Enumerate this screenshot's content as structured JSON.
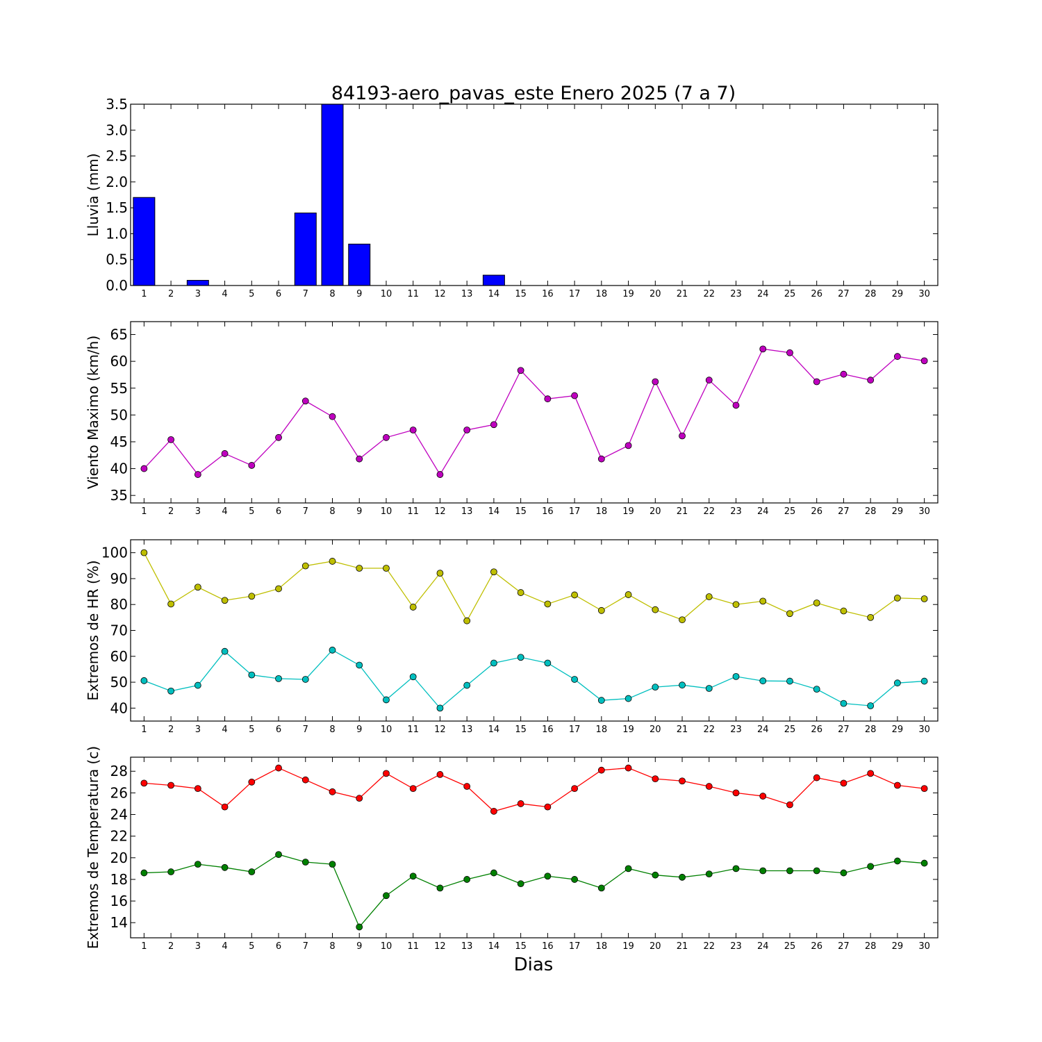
{
  "figure": {
    "title": "84193-aero_pavas_este Enero 2025  (7 a 7)",
    "xlabel": "Dias"
  },
  "chart_data": [
    {
      "type": "bar",
      "ylabel": "Lluvia (mm)",
      "x": [
        1,
        2,
        3,
        4,
        5,
        6,
        7,
        8,
        9,
        10,
        11,
        12,
        13,
        14,
        15,
        16,
        17,
        18,
        19,
        20,
        21,
        22,
        23,
        24,
        25,
        26,
        27,
        28,
        29,
        30
      ],
      "xlim": [
        0.5,
        30.5
      ],
      "ylim": [
        0,
        3.5
      ],
      "yticks": [
        0.0,
        0.5,
        1.0,
        1.5,
        2.0,
        2.5,
        3.0,
        3.5
      ],
      "ytick_labels": [
        "0.0",
        "0.5",
        "1.0",
        "1.5",
        "2.0",
        "2.5",
        "3.0",
        "3.5"
      ],
      "grid": false,
      "series": [
        {
          "color": "#0000ff",
          "values": [
            1.7,
            0,
            0.1,
            0,
            0,
            0,
            1.4,
            3.6,
            0.8,
            0,
            0,
            0,
            0,
            0.2,
            0,
            0,
            0,
            0,
            0,
            0,
            0,
            0,
            0,
            0,
            0,
            0,
            0,
            0,
            0,
            0
          ]
        }
      ]
    },
    {
      "type": "line",
      "ylabel": "Viento Maximo (km/h)",
      "x": [
        1,
        2,
        3,
        4,
        5,
        6,
        7,
        8,
        9,
        10,
        11,
        12,
        13,
        14,
        15,
        16,
        17,
        18,
        19,
        20,
        21,
        22,
        23,
        24,
        25,
        26,
        27,
        28,
        29,
        30
      ],
      "xlim": [
        0.5,
        30.5
      ],
      "ylim": [
        33.6,
        67.4
      ],
      "yticks": [
        35,
        40,
        45,
        50,
        55,
        60,
        65
      ],
      "ytick_labels": [
        "35",
        "40",
        "45",
        "50",
        "55",
        "60",
        "65"
      ],
      "grid": false,
      "series": [
        {
          "color": "#bf00bf",
          "values": [
            40.0,
            45.4,
            38.9,
            42.8,
            40.6,
            45.8,
            52.6,
            49.7,
            41.8,
            45.8,
            47.2,
            38.9,
            47.2,
            48.2,
            58.3,
            53.0,
            53.6,
            41.8,
            44.3,
            56.2,
            46.1,
            56.5,
            51.8,
            62.3,
            61.6,
            56.2,
            57.6,
            56.5,
            60.9,
            60.1
          ]
        }
      ]
    },
    {
      "type": "line",
      "ylabel": "Extremos de HR (%)",
      "x": [
        1,
        2,
        3,
        4,
        5,
        6,
        7,
        8,
        9,
        10,
        11,
        12,
        13,
        14,
        15,
        16,
        17,
        18,
        19,
        20,
        21,
        22,
        23,
        24,
        25,
        26,
        27,
        28,
        29,
        30
      ],
      "xlim": [
        0.5,
        30.5
      ],
      "ylim": [
        35,
        105
      ],
      "yticks": [
        40,
        50,
        60,
        70,
        80,
        90,
        100
      ],
      "ytick_labels": [
        "40",
        "50",
        "60",
        "70",
        "80",
        "90",
        "100"
      ],
      "grid": false,
      "series": [
        {
          "color": "#bfbf00",
          "values": [
            100,
            80.2,
            86.7,
            81.6,
            83.2,
            86.1,
            94.9,
            96.7,
            94.0,
            94.0,
            79.0,
            92.1,
            73.7,
            92.6,
            84.6,
            80.2,
            83.7,
            77.7,
            83.8,
            78.0,
            74.1,
            83.0,
            80.0,
            81.3,
            76.5,
            80.6,
            77.5,
            75.0,
            82.5,
            82.2
          ]
        },
        {
          "color": "#00bfbf",
          "values": [
            50.6,
            46.6,
            48.8,
            61.9,
            52.8,
            51.4,
            51.1,
            62.4,
            56.6,
            43.2,
            52.1,
            40.0,
            48.8,
            57.4,
            59.6,
            57.4,
            51.1,
            43.0,
            43.7,
            48.1,
            48.9,
            47.6,
            52.2,
            50.5,
            50.4,
            47.3,
            41.8,
            40.9,
            49.7,
            50.4
          ]
        }
      ]
    },
    {
      "type": "line",
      "ylabel": "Extremos de Temperatura (c)",
      "x": [
        1,
        2,
        3,
        4,
        5,
        6,
        7,
        8,
        9,
        10,
        11,
        12,
        13,
        14,
        15,
        16,
        17,
        18,
        19,
        20,
        21,
        22,
        23,
        24,
        25,
        26,
        27,
        28,
        29,
        30
      ],
      "xlim": [
        0.5,
        30.5
      ],
      "ylim": [
        12.6,
        29.3
      ],
      "yticks": [
        14,
        16,
        18,
        20,
        22,
        24,
        26,
        28
      ],
      "ytick_labels": [
        "14",
        "16",
        "18",
        "20",
        "22",
        "24",
        "26",
        "28"
      ],
      "grid": false,
      "series": [
        {
          "color": "#ff0000",
          "values": [
            26.9,
            26.7,
            26.4,
            24.7,
            27.0,
            28.3,
            27.2,
            26.1,
            25.5,
            27.8,
            26.4,
            27.7,
            26.6,
            24.3,
            25.0,
            24.7,
            26.4,
            28.1,
            28.3,
            27.3,
            27.1,
            26.6,
            26.0,
            25.7,
            24.9,
            27.4,
            26.9,
            27.8,
            26.7,
            26.4
          ]
        },
        {
          "color": "#008000",
          "values": [
            18.6,
            18.7,
            19.4,
            19.1,
            18.7,
            20.3,
            19.6,
            19.4,
            13.6,
            16.5,
            18.3,
            17.2,
            18.0,
            18.6,
            17.6,
            18.3,
            18.0,
            17.2,
            19.0,
            18.4,
            18.2,
            18.5,
            19.0,
            18.8,
            18.8,
            18.8,
            18.6,
            19.2,
            19.7,
            19.5
          ]
        }
      ]
    }
  ]
}
